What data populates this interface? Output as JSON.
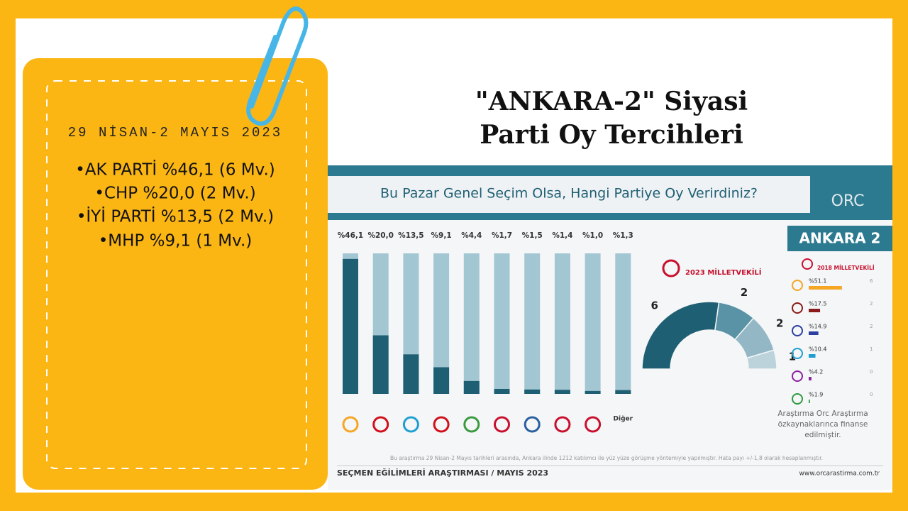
{
  "card": {
    "title_line1": "\"ANKARA-2\" Siyasi",
    "title_line2": "Parti Oy Tercihleri"
  },
  "panel": {
    "date": "29 NİSAN-2 MAYIS 2023",
    "items": [
      "•AK PARTİ %46,1 (6 Mv.)",
      "•CHP %20,0 (2 Mv.)",
      "•İYİ PARTİ %13,5 (2 Mv.)",
      "•MHP %9,1 (1 Mv.)"
    ]
  },
  "infographic": {
    "question": "Bu Pazar Genel Seçim Olsa, Hangi Partiye Oy Verirdiniz?",
    "brand": "ORC",
    "region": "ANKARA 2",
    "funding": [
      "Araştırma Orc Araştırma",
      "özkaynaklarınca finanse",
      "edilmiştir."
    ],
    "note": "Bu araştırma 29 Nisan-2 Mayıs tarihleri arasında, Ankara ilinde 1212 katılımcı ile yüz yüze görüşme yöntemiyle yapılmıştır. Hata payı +/-1,8 olarak hesaplanmıştır.",
    "footer": "SEÇMEN EĞİLİMLERİ ARAŞTIRMASI / MAYIS 2023",
    "url": "www.orcarastirma.com.tr"
  },
  "chart_data": [
    {
      "type": "bar",
      "categories": [
        null,
        null,
        null,
        null,
        null,
        null,
        null,
        null,
        null,
        "Diğer"
      ],
      "values": [
        46.1,
        20.0,
        13.5,
        9.1,
        4.4,
        1.7,
        1.5,
        1.4,
        1.0,
        1.3
      ],
      "value_labels": [
        "%46,1",
        "%20,0",
        "%13,5",
        "%9,1",
        "%4,4",
        "%1,7",
        "%1,5",
        "%1,4",
        "%1,0",
        "%1,3"
      ],
      "color": "#1f5f73",
      "track_color": "#a3c6d3",
      "ylim": [
        0,
        48
      ]
    },
    {
      "type": "semicircle",
      "title": "2023 MİLLETVEKİLİ",
      "values": [
        6,
        2,
        2,
        1
      ],
      "colors": [
        "#1f5f73",
        "#5b93a6",
        "#93b7c5",
        "#bcd3dc"
      ]
    },
    {
      "type": "hbar",
      "title": "2018 MİLLETVEKİLİ",
      "values": [
        51.1,
        17.5,
        14.9,
        10.4,
        4.2,
        1.9
      ],
      "value_labels": [
        "%51.1",
        "%17.5",
        "%14.9",
        "%10.4",
        "%4.2",
        "%1.9"
      ],
      "seats": [
        6,
        2,
        2,
        1,
        0,
        0
      ],
      "colors": [
        "#f5a623",
        "#8b1a1a",
        "#2a3fa0",
        "#1f9fd1",
        "#8b1fa0",
        "#2e9a3e"
      ],
      "xlim": [
        0,
        60
      ]
    }
  ]
}
